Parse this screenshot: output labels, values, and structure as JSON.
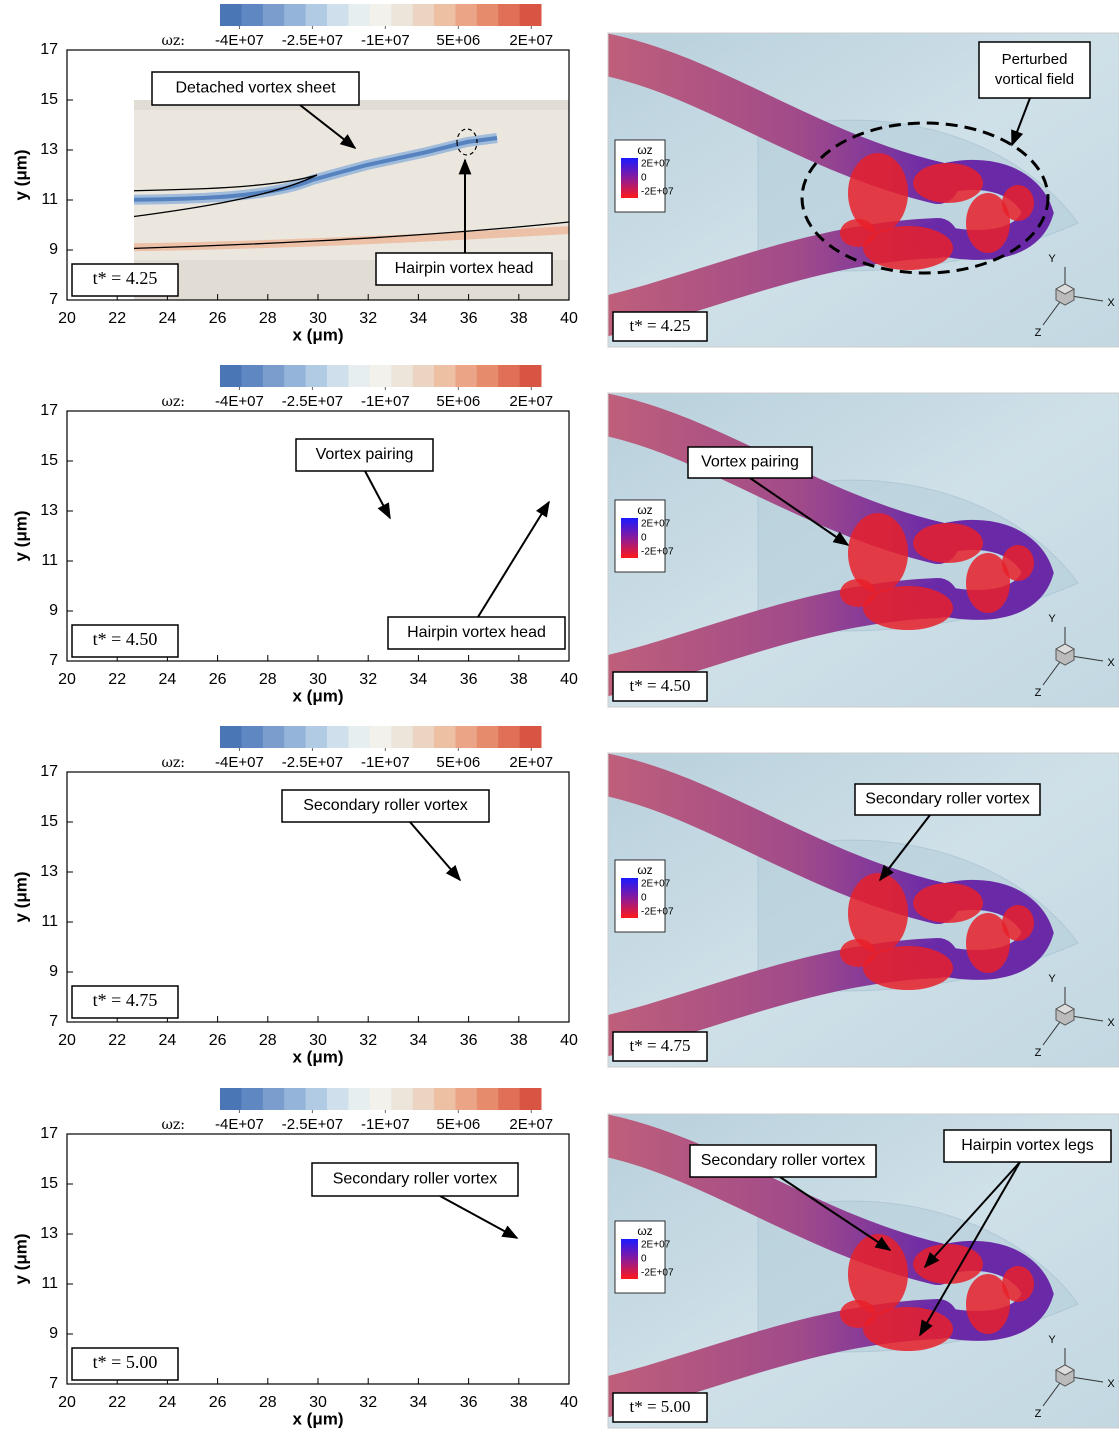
{
  "chart_data": [
    {
      "type": "contour",
      "x_label": "x (μm)",
      "y_label": "y (μm)",
      "xlim": [
        20,
        40
      ],
      "ylim": [
        7,
        17
      ],
      "xticks": [
        20,
        22,
        24,
        26,
        28,
        30,
        32,
        34,
        36,
        38,
        40
      ],
      "yticks": [
        7,
        9,
        11,
        13,
        15,
        17
      ],
      "colorbar": {
        "label": "ωz:",
        "zlim": [
          -44000000,
          22000000
        ],
        "colors": [
          "#4a76b6",
          "#5f88c2",
          "#7a9dce",
          "#95b4da",
          "#b2cbe4",
          "#cfe0ec",
          "#e6eef0",
          "#f2f1ec",
          "#ede5da",
          "#ebd5c2",
          "#eec0a3",
          "#eba586",
          "#e68c6c",
          "#df7055",
          "#d85543"
        ],
        "ticks": [
          {
            "value": -40000000,
            "label": "-4E+07"
          },
          {
            "value": -25000000,
            "label": "-2.5E+07"
          },
          {
            "value": -10000000,
            "label": "-1E+07"
          },
          {
            "value": 5000000,
            "label": "5E+06"
          },
          {
            "value": 20000000,
            "label": "2E+07"
          }
        ]
      },
      "time_label": "t* = 4.25",
      "annotations": [
        {
          "text": "Detached vortex sheet"
        },
        {
          "text": "Hairpin vortex head"
        }
      ]
    },
    {
      "type": "contour",
      "x_label": "x (μm)",
      "y_label": "y (μm)",
      "xlim": [
        20,
        40
      ],
      "ylim": [
        7,
        17
      ],
      "xticks": [
        20,
        22,
        24,
        26,
        28,
        30,
        32,
        34,
        36,
        38,
        40
      ],
      "yticks": [
        7,
        9,
        11,
        13,
        15,
        17
      ],
      "colorbar": {
        "label": "ωz:",
        "zlim": [
          -44000000,
          22000000
        ],
        "colors": [
          "#4a76b6",
          "#5f88c2",
          "#7a9dce",
          "#95b4da",
          "#b2cbe4",
          "#cfe0ec",
          "#e6eef0",
          "#f2f1ec",
          "#ede5da",
          "#ebd5c2",
          "#eec0a3",
          "#eba586",
          "#e68c6c",
          "#df7055",
          "#d85543"
        ],
        "ticks": [
          {
            "value": -40000000,
            "label": "-4E+07"
          },
          {
            "value": -25000000,
            "label": "-2.5E+07"
          },
          {
            "value": -10000000,
            "label": "-1E+07"
          },
          {
            "value": 5000000,
            "label": "5E+06"
          },
          {
            "value": 20000000,
            "label": "2E+07"
          }
        ]
      },
      "time_label": "t* = 4.50",
      "annotations": [
        {
          "text": "Vortex pairing"
        },
        {
          "text": "Hairpin vortex head"
        }
      ]
    },
    {
      "type": "contour",
      "x_label": "x (μm)",
      "y_label": "y (μm)",
      "xlim": [
        20,
        40
      ],
      "ylim": [
        7,
        17
      ],
      "xticks": [
        20,
        22,
        24,
        26,
        28,
        30,
        32,
        34,
        36,
        38,
        40
      ],
      "yticks": [
        7,
        9,
        11,
        13,
        15,
        17
      ],
      "colorbar": {
        "label": "ωz:",
        "zlim": [
          -44000000,
          22000000
        ],
        "colors": [
          "#4a76b6",
          "#5f88c2",
          "#7a9dce",
          "#95b4da",
          "#b2cbe4",
          "#cfe0ec",
          "#e6eef0",
          "#f2f1ec",
          "#ede5da",
          "#ebd5c2",
          "#eec0a3",
          "#eba586",
          "#e68c6c",
          "#df7055",
          "#d85543"
        ],
        "ticks": [
          {
            "value": -40000000,
            "label": "-4E+07"
          },
          {
            "value": -25000000,
            "label": "-2.5E+07"
          },
          {
            "value": -10000000,
            "label": "-1E+07"
          },
          {
            "value": 5000000,
            "label": "5E+06"
          },
          {
            "value": 20000000,
            "label": "2E+07"
          }
        ]
      },
      "time_label": "t* = 4.75",
      "annotations": [
        {
          "text": "Secondary roller vortex"
        }
      ]
    },
    {
      "type": "contour",
      "x_label": "x (μm)",
      "y_label": "y (μm)",
      "xlim": [
        20,
        40
      ],
      "ylim": [
        7,
        17
      ],
      "xticks": [
        20,
        22,
        24,
        26,
        28,
        30,
        32,
        34,
        36,
        38,
        40
      ],
      "yticks": [
        7,
        9,
        11,
        13,
        15,
        17
      ],
      "colorbar": {
        "label": "ωz:",
        "zlim": [
          -44000000,
          22000000
        ],
        "colors": [
          "#4a76b6",
          "#5f88c2",
          "#7a9dce",
          "#95b4da",
          "#b2cbe4",
          "#cfe0ec",
          "#e6eef0",
          "#f2f1ec",
          "#ede5da",
          "#ebd5c2",
          "#eec0a3",
          "#eba586",
          "#e68c6c",
          "#df7055",
          "#d85543"
        ],
        "ticks": [
          {
            "value": -40000000,
            "label": "-4E+07"
          },
          {
            "value": -25000000,
            "label": "-2.5E+07"
          },
          {
            "value": -10000000,
            "label": "-1E+07"
          },
          {
            "value": 5000000,
            "label": "5E+06"
          },
          {
            "value": 20000000,
            "label": "2E+07"
          }
        ]
      },
      "time_label": "t* = 5.00",
      "annotations": [
        {
          "text": "Secondary roller vortex"
        }
      ]
    }
  ],
  "renders": [
    {
      "time_label": "t* = 4.25",
      "legend": {
        "title": "ωz",
        "labels": [
          "2E+07",
          "0",
          "-2E+07"
        ]
      },
      "axes": [
        "Y",
        "X",
        "Z"
      ],
      "annotations": [
        {
          "lines": [
            "Perturbed",
            "vortical field"
          ]
        }
      ]
    },
    {
      "time_label": "t* = 4.50",
      "legend": {
        "title": "ωz",
        "labels": [
          "2E+07",
          "0",
          "-2E+07"
        ]
      },
      "axes": [
        "Y",
        "X",
        "Z"
      ],
      "annotations": [
        {
          "lines": [
            "Vortex pairing"
          ]
        }
      ]
    },
    {
      "time_label": "t* = 4.75",
      "legend": {
        "title": "ωz",
        "labels": [
          "2E+07",
          "0",
          "-2E+07"
        ]
      },
      "axes": [
        "Y",
        "X",
        "Z"
      ],
      "annotations": [
        {
          "lines": [
            "Secondary roller vortex"
          ]
        }
      ]
    },
    {
      "time_label": "t* = 5.00",
      "legend": {
        "title": "ωz",
        "labels": [
          "2E+07",
          "0",
          "-2E+07"
        ]
      },
      "axes": [
        "Y",
        "X",
        "Z"
      ],
      "annotations": [
        {
          "lines": [
            "Secondary roller vortex"
          ]
        },
        {
          "lines": [
            "Hairpin vortex legs"
          ]
        }
      ]
    }
  ]
}
